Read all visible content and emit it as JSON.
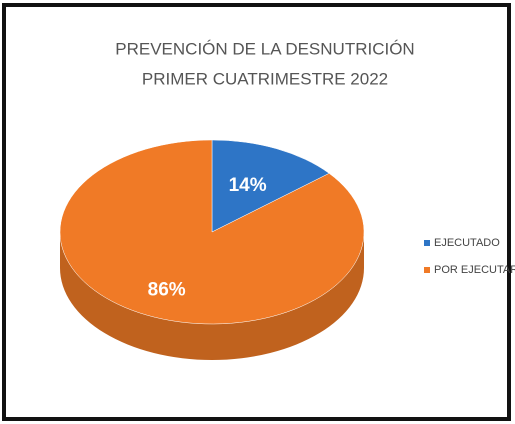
{
  "chart_data": {
    "type": "pie3d",
    "title": "PREVENCIÓN DE LA DESNUTRICIÓN",
    "subtitle": "PRIMER CUATRIMESTRE 2022",
    "categories": [
      "EJECUTADO",
      "POR EJECUTAR"
    ],
    "values": [
      14,
      86
    ],
    "value_labels": [
      "14%",
      "86%"
    ],
    "colors": [
      "#2e75c6",
      "#f07a26"
    ],
    "legend": "right"
  }
}
